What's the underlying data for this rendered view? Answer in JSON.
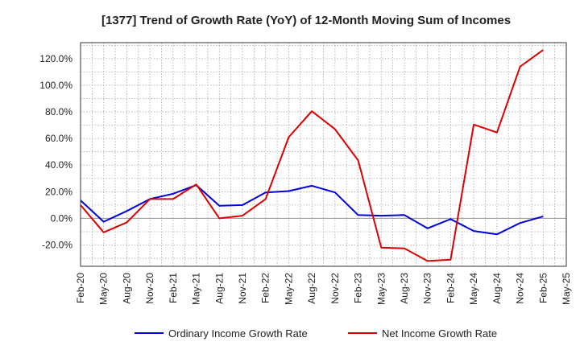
{
  "chart_data": {
    "type": "line",
    "title": "[1377]  Trend of Growth Rate (YoY) of 12-Month Moving Sum of Incomes",
    "xlabel": "",
    "ylabel": "",
    "x_categories": [
      "Feb-20",
      "May-20",
      "Aug-20",
      "Nov-20",
      "Feb-21",
      "May-21",
      "Aug-21",
      "Nov-21",
      "Feb-22",
      "May-22",
      "Aug-22",
      "Nov-22",
      "Feb-23",
      "May-23",
      "Aug-23",
      "Nov-23",
      "Feb-24",
      "May-24",
      "Aug-24",
      "Nov-24",
      "Feb-25",
      "May-25"
    ],
    "ylim": [
      -36,
      132
    ],
    "yticks": [
      -20,
      0,
      20,
      40,
      60,
      80,
      100,
      120
    ],
    "ytick_labels": [
      "-20.0%",
      "0.0%",
      "20.0%",
      "40.0%",
      "60.0%",
      "80.0%",
      "100.0%",
      "120.0%"
    ],
    "grid": "dotted, both axes",
    "legend_position": "bottom-center",
    "colors": {
      "ordinary": "#0000dd",
      "net": "#dd0000",
      "grid": "#aaaaaa",
      "zero_line": "#999999"
    },
    "series": [
      {
        "name": "Ordinary Income Growth Rate",
        "color": "#0000dd",
        "values": [
          13.5,
          -2.5,
          5.5,
          14.5,
          18.5,
          25,
          9.5,
          10,
          19.5,
          20.5,
          24.5,
          19.5,
          2.5,
          2,
          2.5,
          -7.5,
          -0.5,
          -9.5,
          -12,
          -3.5,
          1.5,
          null
        ]
      },
      {
        "name": "Net Income Growth Rate",
        "color": "#dd0000",
        "values": [
          10,
          -10.5,
          -3,
          14.5,
          14.5,
          25.5,
          0,
          2,
          14.5,
          61,
          80.5,
          67,
          43.5,
          -22,
          -22.5,
          -32,
          -31,
          70.5,
          64.5,
          114,
          126.5,
          null
        ]
      }
    ]
  }
}
